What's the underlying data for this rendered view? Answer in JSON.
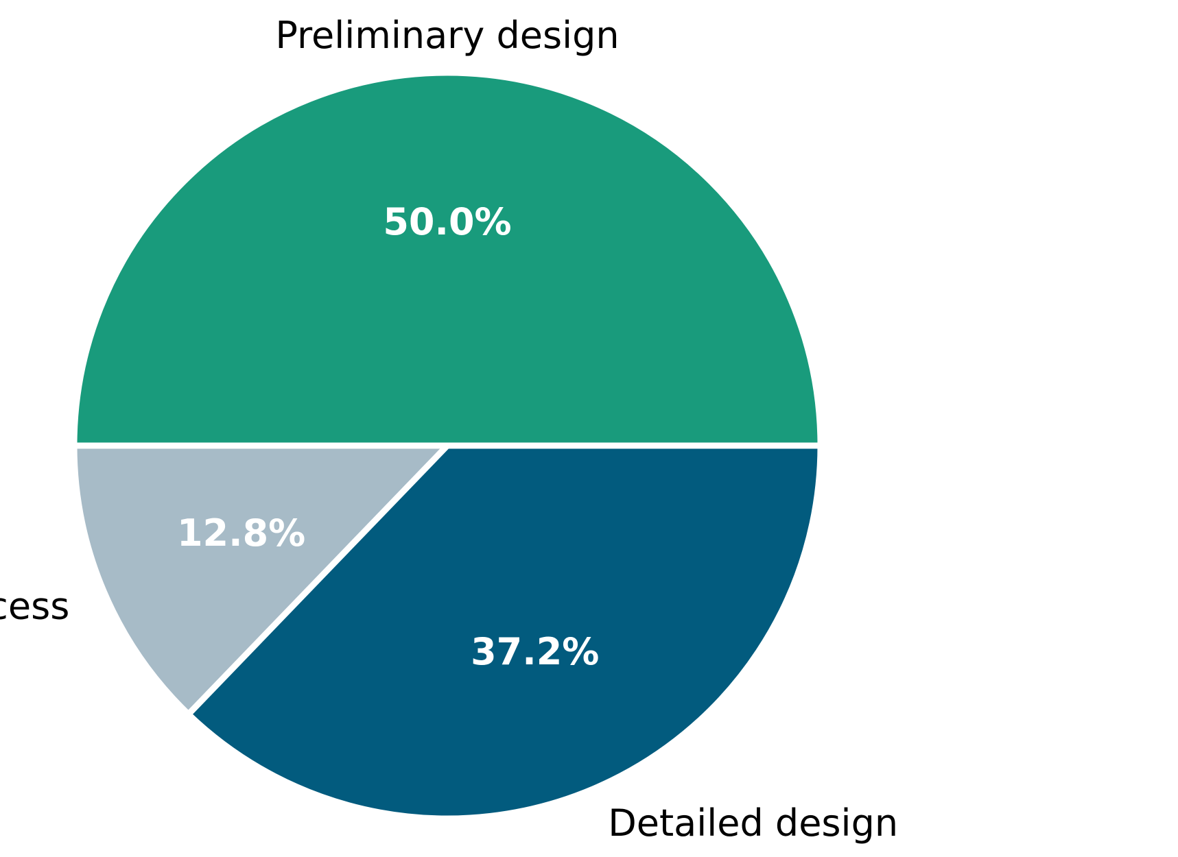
{
  "chart_data": {
    "type": "pie",
    "slices": [
      {
        "label": "Preliminary design",
        "value": 50.0,
        "pct_label": "50.0%",
        "color": "#199b7c"
      },
      {
        "label": "Two staged process",
        "value": 12.8,
        "pct_label": "12.8%",
        "color": "#a7bbc7"
      },
      {
        "label": "Detailed design",
        "value": 37.2,
        "pct_label": "37.2%",
        "color": "#025b7e"
      }
    ],
    "start_angle_deg": 0,
    "direction": "counterclockwise",
    "separator_color": "#ffffff"
  }
}
